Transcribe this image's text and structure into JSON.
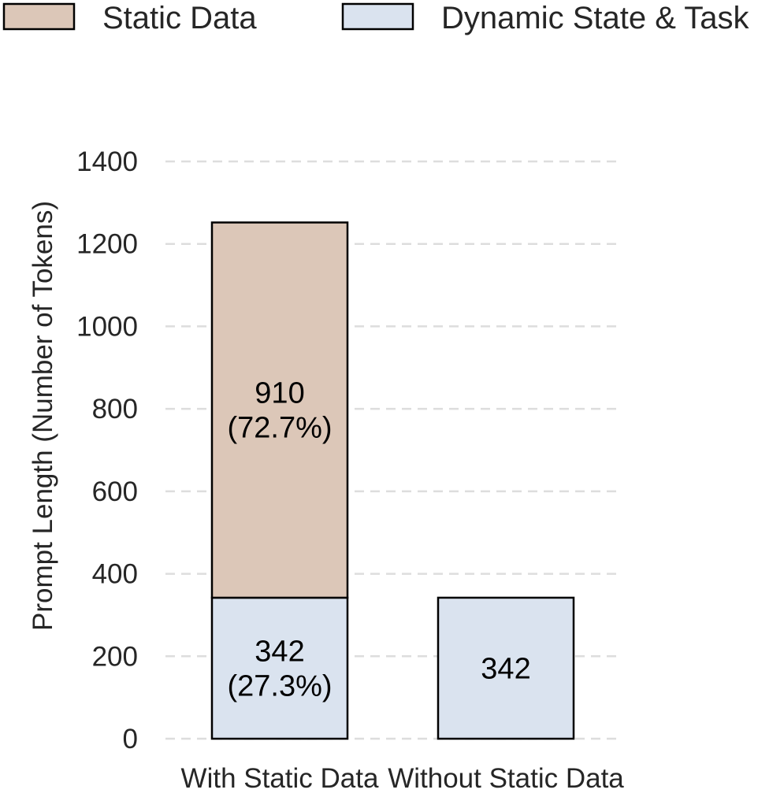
{
  "chart_data": {
    "type": "bar",
    "stacked": true,
    "categories": [
      "With Static Data",
      "Without Static Data"
    ],
    "series": [
      {
        "name": "Dynamic State & Task",
        "values": [
          342,
          342
        ],
        "color": "#dae3ef",
        "labels": [
          "342\n(27.3%)",
          "342"
        ]
      },
      {
        "name": "Static Data",
        "values": [
          910,
          0
        ],
        "color": "#dcc7b8",
        "labels": [
          "910\n(72.7%)",
          ""
        ]
      }
    ],
    "legend_order": [
      "Static Data",
      "Dynamic State & Task"
    ],
    "legend_position": "top",
    "ylabel": "Prompt Length (Number of Tokens)",
    "xlabel": "",
    "ylim": [
      0,
      1400
    ],
    "yticks": [
      0,
      200,
      400,
      600,
      800,
      1000,
      1200,
      1400
    ],
    "grid": "horizontal dashed",
    "edge_color": "#000000",
    "grid_color": "#dddddd"
  }
}
